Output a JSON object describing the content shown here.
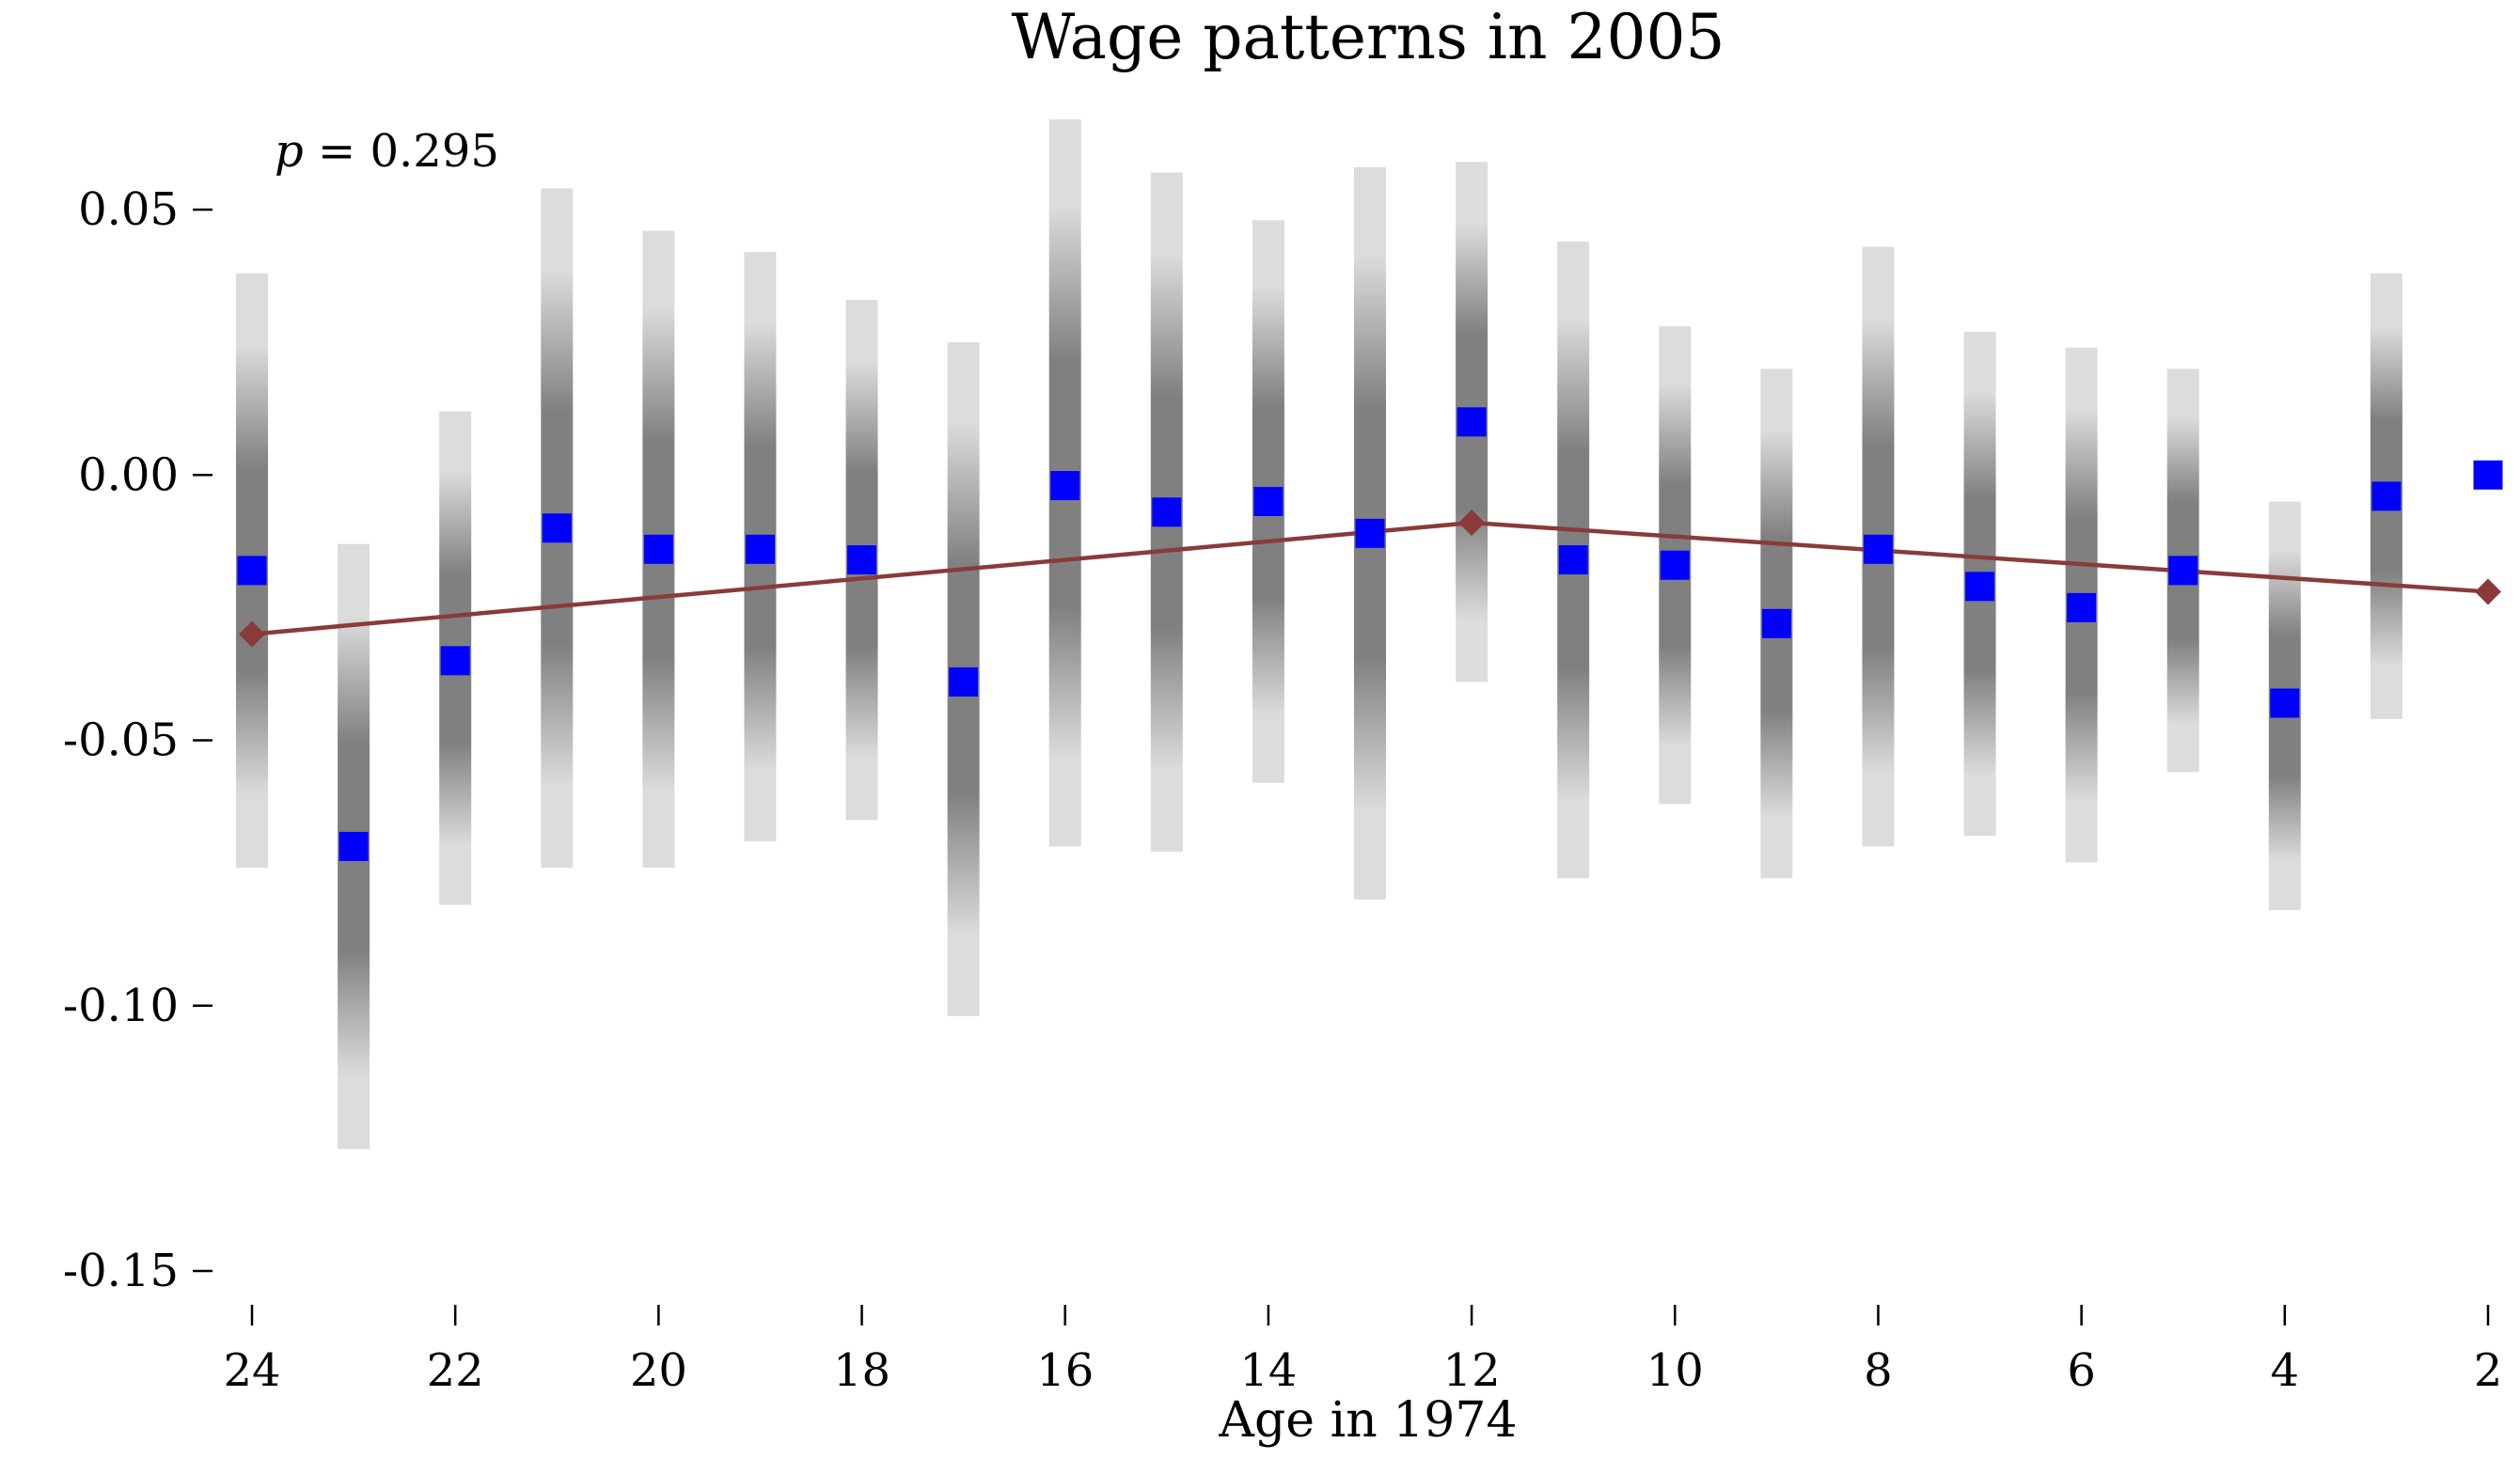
{
  "chart_data": {
    "type": "scatter",
    "title": "Wage patterns in 2005",
    "xlabel": "Age in 1974",
    "ylabel": "",
    "annotation": {
      "p_label": "p",
      "p_rest": " = 0.295"
    },
    "xlim": [
      24,
      2
    ],
    "ylim": [
      -0.15,
      0.05
    ],
    "x_ticks": [
      24,
      22,
      20,
      18,
      16,
      14,
      12,
      10,
      8,
      6,
      4,
      2
    ],
    "y_ticks": [
      0.05,
      0.0,
      -0.05,
      -0.1,
      -0.15
    ],
    "x_tick_labels": [
      "24",
      "22",
      "20",
      "18",
      "16",
      "14",
      "12",
      "10",
      "8",
      "6",
      "4",
      "2"
    ],
    "y_tick_labels": [
      "0.05",
      "0.00",
      "-0.05",
      "-0.10",
      "-0.15"
    ],
    "estimates": {
      "color": "#0000ff",
      "x": [
        24,
        23,
        22,
        21,
        20,
        19,
        18,
        17,
        16,
        15,
        14,
        13,
        12,
        11,
        10,
        9,
        8,
        7,
        6,
        5,
        4,
        3,
        2
      ],
      "y": [
        -0.018,
        -0.07,
        -0.035,
        -0.01,
        -0.014,
        -0.014,
        -0.016,
        -0.039,
        -0.002,
        -0.007,
        -0.005,
        -0.011,
        0.01,
        -0.016,
        -0.017,
        -0.028,
        -0.014,
        -0.021,
        -0.025,
        -0.018,
        -0.043,
        -0.004,
        0.0
      ]
    },
    "confidence_intervals": {
      "color_inner": "#808080",
      "color_outer": "#dcdcdc",
      "lower": [
        -0.074,
        -0.127,
        -0.081,
        -0.074,
        -0.074,
        -0.069,
        -0.065,
        -0.102,
        -0.07,
        -0.071,
        -0.058,
        -0.08,
        -0.039,
        -0.076,
        -0.062,
        -0.076,
        -0.07,
        -0.068,
        -0.073,
        -0.056,
        -0.082,
        -0.046,
        null
      ],
      "upper": [
        0.038,
        -0.013,
        0.012,
        0.054,
        0.046,
        0.042,
        0.033,
        0.025,
        0.067,
        0.057,
        0.048,
        0.058,
        0.059,
        0.044,
        0.028,
        0.02,
        0.043,
        0.027,
        0.024,
        0.02,
        -0.005,
        0.038,
        null
      ]
    },
    "fitted_line": {
      "color": "#8b3a3a",
      "x": [
        24,
        12,
        2
      ],
      "y": [
        -0.03,
        -0.009,
        -0.022
      ]
    }
  }
}
